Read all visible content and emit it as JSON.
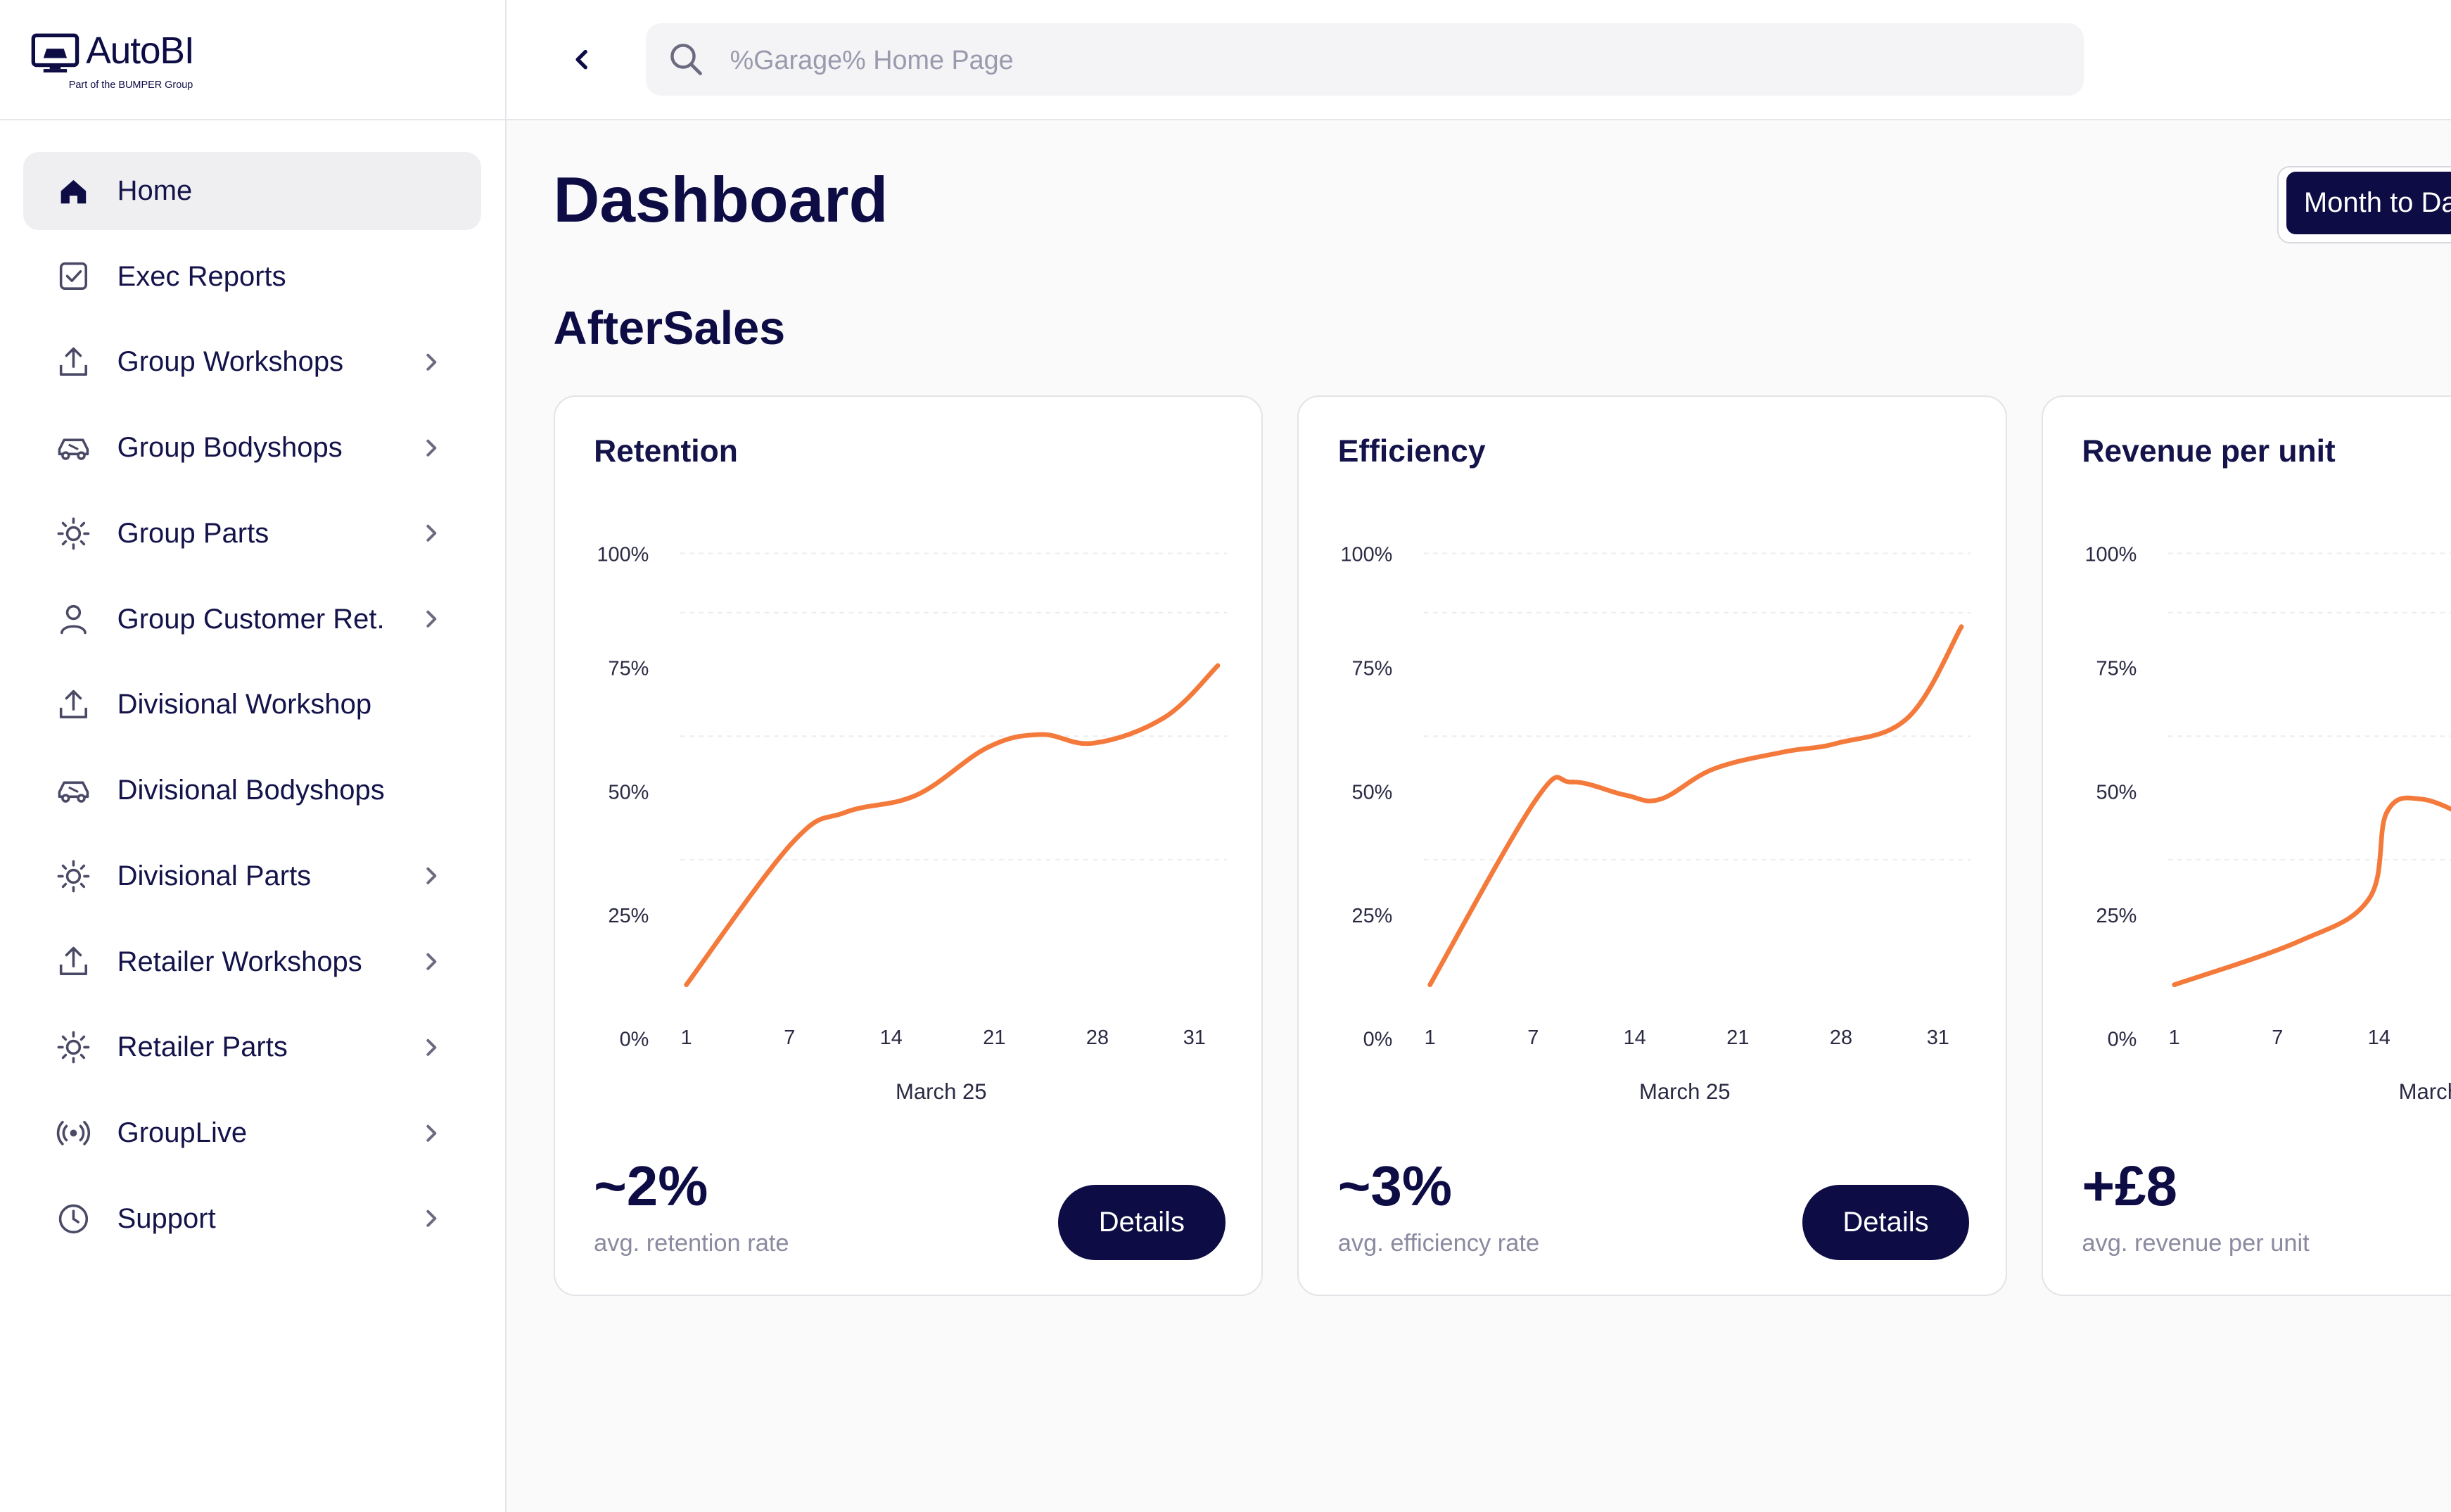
{
  "brand": {
    "name": "AutoBI",
    "tagline": "Part of the BUMPER Group"
  },
  "search": {
    "placeholder": "%Garage% Home Page"
  },
  "sidebar": {
    "items": [
      {
        "label": "Home",
        "icon": "home-icon",
        "active": true,
        "chevron": false
      },
      {
        "label": "Exec Reports",
        "icon": "checkbox-icon",
        "chevron": false
      },
      {
        "label": "Group Workshops",
        "icon": "upload-icon",
        "chevron": true
      },
      {
        "label": "Group Bodyshops",
        "icon": "car-icon",
        "chevron": true
      },
      {
        "label": "Group Parts",
        "icon": "sun-icon",
        "chevron": true
      },
      {
        "label": "Group Customer Ret.",
        "icon": "user-icon",
        "chevron": true
      },
      {
        "label": "Divisional Workshop",
        "icon": "upload-icon",
        "chevron": false
      },
      {
        "label": "Divisional Bodyshops",
        "icon": "car-icon",
        "chevron": false
      },
      {
        "label": "Divisional Parts",
        "icon": "sun-icon",
        "chevron": true
      },
      {
        "label": "Retailer Workshops",
        "icon": "upload-icon",
        "chevron": true
      },
      {
        "label": "Retailer Parts",
        "icon": "sun-icon",
        "chevron": true
      },
      {
        "label": "GroupLive",
        "icon": "broadcast-icon",
        "chevron": true
      },
      {
        "label": "Support",
        "icon": "support-icon",
        "chevron": true
      }
    ]
  },
  "main": {
    "title": "Dashboard",
    "period_button": "Month to Da",
    "section_title": "AfterSales"
  },
  "cards": [
    {
      "title": "Retention",
      "stat_value": "~2%",
      "stat_label": "avg. retention rate",
      "button": "Details"
    },
    {
      "title": "Efficiency",
      "stat_value": "~3%",
      "stat_label": "avg. efficiency rate",
      "button": "Details"
    },
    {
      "title": "Revenue per unit",
      "stat_value": "+£8",
      "stat_label": "avg. revenue per unit",
      "button": ""
    }
  ],
  "colors": {
    "accent": "#f47a3c",
    "navy": "#0d0c44"
  },
  "chart_data": [
    {
      "type": "line",
      "title": "Retention",
      "xlabel": "March 25",
      "ylabel": "",
      "x_ticks": [
        "1",
        "7",
        "14",
        "21",
        "28",
        "31"
      ],
      "y_ticks": [
        "0%",
        "25%",
        "50%",
        "75%",
        "100%"
      ],
      "ylim": [
        0,
        100
      ],
      "xlim": [
        1,
        31
      ],
      "series": [
        {
          "name": "Retention",
          "x": [
            1,
            7,
            10,
            14,
            18,
            21,
            24,
            28,
            31
          ],
          "y": [
            0,
            33,
            40,
            44,
            55,
            58,
            56,
            62,
            74
          ]
        }
      ]
    },
    {
      "type": "line",
      "title": "Efficiency",
      "xlabel": "March 25",
      "ylabel": "",
      "x_ticks": [
        "1",
        "7",
        "14",
        "21",
        "28",
        "31"
      ],
      "y_ticks": [
        "0%",
        "25%",
        "50%",
        "75%",
        "100%"
      ],
      "ylim": [
        0,
        100
      ],
      "xlim": [
        1,
        31
      ],
      "series": [
        {
          "name": "Efficiency",
          "x": [
            1,
            7,
            9,
            12,
            14,
            17,
            21,
            24,
            28,
            31
          ],
          "y": [
            0,
            43,
            47,
            44,
            43,
            50,
            54,
            56,
            62,
            83
          ]
        }
      ]
    },
    {
      "type": "line",
      "title": "Revenue per unit",
      "xlabel": "March",
      "ylabel": "",
      "x_ticks": [
        "1",
        "7",
        "14"
      ],
      "y_ticks": [
        "0%",
        "25%",
        "50%",
        "75%",
        "100%"
      ],
      "ylim": [
        0,
        100
      ],
      "xlim": [
        1,
        31
      ],
      "series": [
        {
          "name": "Revenue per unit",
          "x": [
            1,
            8,
            12,
            13,
            15,
            18
          ],
          "y": [
            0,
            10,
            20,
            40,
            43,
            38
          ]
        }
      ]
    }
  ]
}
